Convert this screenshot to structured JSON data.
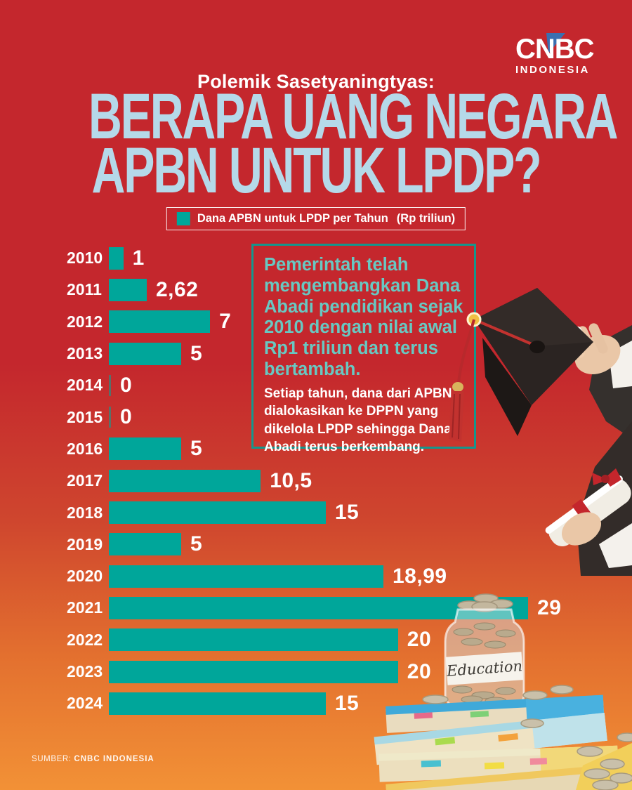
{
  "brand": {
    "logo_text": "CNBC",
    "logo_sub": "INDONESIA",
    "accent_blue": "#3a6fb0"
  },
  "header": {
    "kicker": "Polemik Sasetyaningtyas:",
    "title_line1": "BERAPA UANG NEGARA",
    "title_line2": "APBN UNTUK LPDP?",
    "title_color": "#b5d9e9"
  },
  "legend": {
    "label": "Dana APBN untuk LPDP per Tahun",
    "label_bold": "(Rp triliun)",
    "swatch_color": "#00a69a"
  },
  "chart_data": {
    "type": "bar",
    "orientation": "horizontal",
    "title": "Dana APBN untuk LPDP per Tahun (Rp triliun)",
    "xlabel": "Rp triliun",
    "ylabel": "Tahun",
    "xlim": [
      0,
      29
    ],
    "grid": false,
    "bar_color": "#00a69a",
    "categories": [
      "2010",
      "2011",
      "2012",
      "2013",
      "2014",
      "2015",
      "2016",
      "2017",
      "2018",
      "2019",
      "2020",
      "2021",
      "2022",
      "2023",
      "2024"
    ],
    "values": [
      1,
      2.62,
      7,
      5,
      0,
      0,
      5,
      10.5,
      15,
      5,
      18.99,
      29,
      20,
      20,
      15
    ],
    "value_labels": [
      "1",
      "2,62",
      "7",
      "5",
      "0",
      "0",
      "5",
      "10,5",
      "15",
      "5",
      "18,99",
      "29",
      "20",
      "20",
      "15"
    ]
  },
  "infobox": {
    "highlight": "Pemerintah telah mengembangkan Dana Abadi pendidikan sejak 2010 dengan nilai awal Rp1 triliun dan terus bertambah.",
    "body": "Setiap tahun, dana dari APBN dialokasikan ke DPPN yang dikelola LPDP sehingga Dana Abadi terus berkembang.",
    "border_color": "#15968d",
    "highlight_color": "#68c8c2"
  },
  "images": {
    "jar_label": "Education"
  },
  "footer": {
    "source_label": "SUMBER:",
    "source_value": "CNBC INDONESIA"
  },
  "colors": {
    "background_top": "#c4272d",
    "background_bottom": "#f29136",
    "bar_teal": "#00a69a"
  }
}
